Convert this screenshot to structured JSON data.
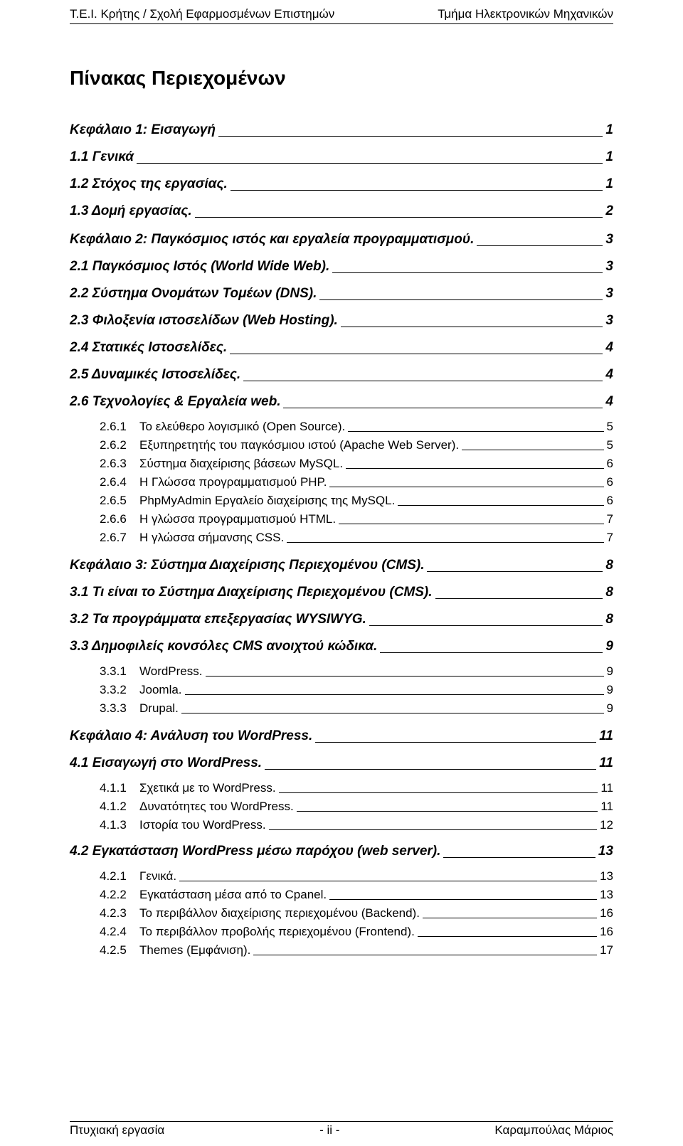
{
  "header": {
    "left": "Τ.Ε.Ι. Κρήτης / Σχολή Εφαρμοσμένων Επιστημών",
    "right": "Τμήμα Ηλεκτρονικών Μηχανικών"
  },
  "title": "Πίνακας Περιεχομένων",
  "footer": {
    "left": "Πτυχιακή εργασία",
    "center": "- ii -",
    "right": "Καραμπούλας Μάριος"
  },
  "entries": [
    {
      "level": "chapter",
      "label": "Κεφάλαιο 1: Εισαγωγή",
      "page": "1"
    },
    {
      "level": "section",
      "label": "1.1   Γενικά",
      "page": "1"
    },
    {
      "level": "section",
      "label": "1.2   Στόχος της εργασίας.",
      "page": "1"
    },
    {
      "level": "section",
      "label": "1.3   Δομή εργασίας.",
      "page": "2"
    },
    {
      "level": "chapter",
      "label": "Κεφάλαιο 2: Παγκόσμιος ιστός και εργαλεία προγραμματισμού.",
      "page": "3"
    },
    {
      "level": "section",
      "label": "2.1   Παγκόσμιος Ιστός (World Wide Web).",
      "page": "3"
    },
    {
      "level": "section",
      "label": "2.2   Σύστημα Ονομάτων Τομέων (DNS).",
      "page": "3"
    },
    {
      "level": "section",
      "label": "2.3   Φιλοξενία ιστοσελίδων (Web Hosting).",
      "page": "3"
    },
    {
      "level": "section",
      "label": "2.4   Στατικές Ιστοσελίδες.",
      "page": "4"
    },
    {
      "level": "section",
      "label": "2.5   Δυναμικές Ιστοσελίδες.",
      "page": "4"
    },
    {
      "level": "section",
      "label": "2.6   Τεχνολογίες & Εργαλεία web.",
      "page": "4"
    },
    {
      "level": "sub",
      "num": "2.6.1",
      "label": "Το ελεύθερο λογισμικό (Open Source).",
      "page": "5"
    },
    {
      "level": "sub",
      "num": "2.6.2",
      "label": "Εξυπηρετητής του παγκόσμιου ιστού (Apache Web Server).",
      "page": "5"
    },
    {
      "level": "sub",
      "num": "2.6.3",
      "label": "Σύστημα διαχείρισης βάσεων MySQL.",
      "page": "6"
    },
    {
      "level": "sub",
      "num": "2.6.4",
      "label": "Η Γλώσσα προγραμματισμού PHP.",
      "page": "6"
    },
    {
      "level": "sub",
      "num": "2.6.5",
      "label": "PhpMyAdmin Εργαλείο διαχείρισης της MySQL.",
      "page": "6"
    },
    {
      "level": "sub",
      "num": "2.6.6",
      "label": "Η γλώσσα προγραμματισμού  HTML.",
      "page": "7"
    },
    {
      "level": "sub",
      "num": "2.6.7",
      "label": "Η γλώσσα σήμανσης CSS.",
      "page": "7"
    },
    {
      "level": "chapter",
      "label": "Κεφάλαιο 3: Σύστημα Διαχείρισης Περιεχομένου (CMS).",
      "page": "8"
    },
    {
      "level": "section",
      "label": "3.1   Τι είναι το Σύστημα Διαχείρισης Περιεχομένου (CMS).",
      "page": "8"
    },
    {
      "level": "section",
      "label": "3.2   Τα προγράμματα επεξεργασίας WYSIWYG.",
      "page": "8"
    },
    {
      "level": "section",
      "label": "3.3   Δημοφιλείς κονσόλες CMS ανοιχτού κώδικα.",
      "page": "9"
    },
    {
      "level": "sub",
      "num": "3.3.1",
      "label": "WordPress.",
      "page": "9"
    },
    {
      "level": "sub",
      "num": "3.3.2",
      "label": "Joomla.",
      "page": "9"
    },
    {
      "level": "sub",
      "num": "3.3.3",
      "label": "Drupal.",
      "page": "9"
    },
    {
      "level": "chapter",
      "label": "Κεφάλαιο 4: Ανάλυση του WordPress.",
      "page": "11"
    },
    {
      "level": "section",
      "label": "4.1   Εισαγωγή στο WordPress.",
      "page": "11"
    },
    {
      "level": "sub",
      "num": "4.1.1",
      "label": "Σχετικά με το WordPress.",
      "page": "11"
    },
    {
      "level": "sub",
      "num": "4.1.2",
      "label": "Δυνατότητες του WordPress.",
      "page": "11"
    },
    {
      "level": "sub",
      "num": "4.1.3",
      "label": "Ιστορία του WordPress.",
      "page": "12"
    },
    {
      "level": "section",
      "label": "4.2   Εγκατάσταση WordPress μέσω παρόχου (web server).",
      "page": "13"
    },
    {
      "level": "sub",
      "num": "4.2.1",
      "label": "Γενικά.",
      "page": "13"
    },
    {
      "level": "sub",
      "num": "4.2.2",
      "label": "Εγκατάσταση μέσα από το  Cpanel.",
      "page": "13"
    },
    {
      "level": "sub",
      "num": "4.2.3",
      "label": "Το περιβάλλον διαχείρισης περιεχομένου (Backend).",
      "page": "16"
    },
    {
      "level": "sub",
      "num": "4.2.4",
      "label": "Το περιβάλλον προβολής περιεχομένου (Frontend).",
      "page": "16"
    },
    {
      "level": "sub",
      "num": "4.2.5",
      "label": "Themes (Εμφάνιση).",
      "page": "17"
    }
  ]
}
